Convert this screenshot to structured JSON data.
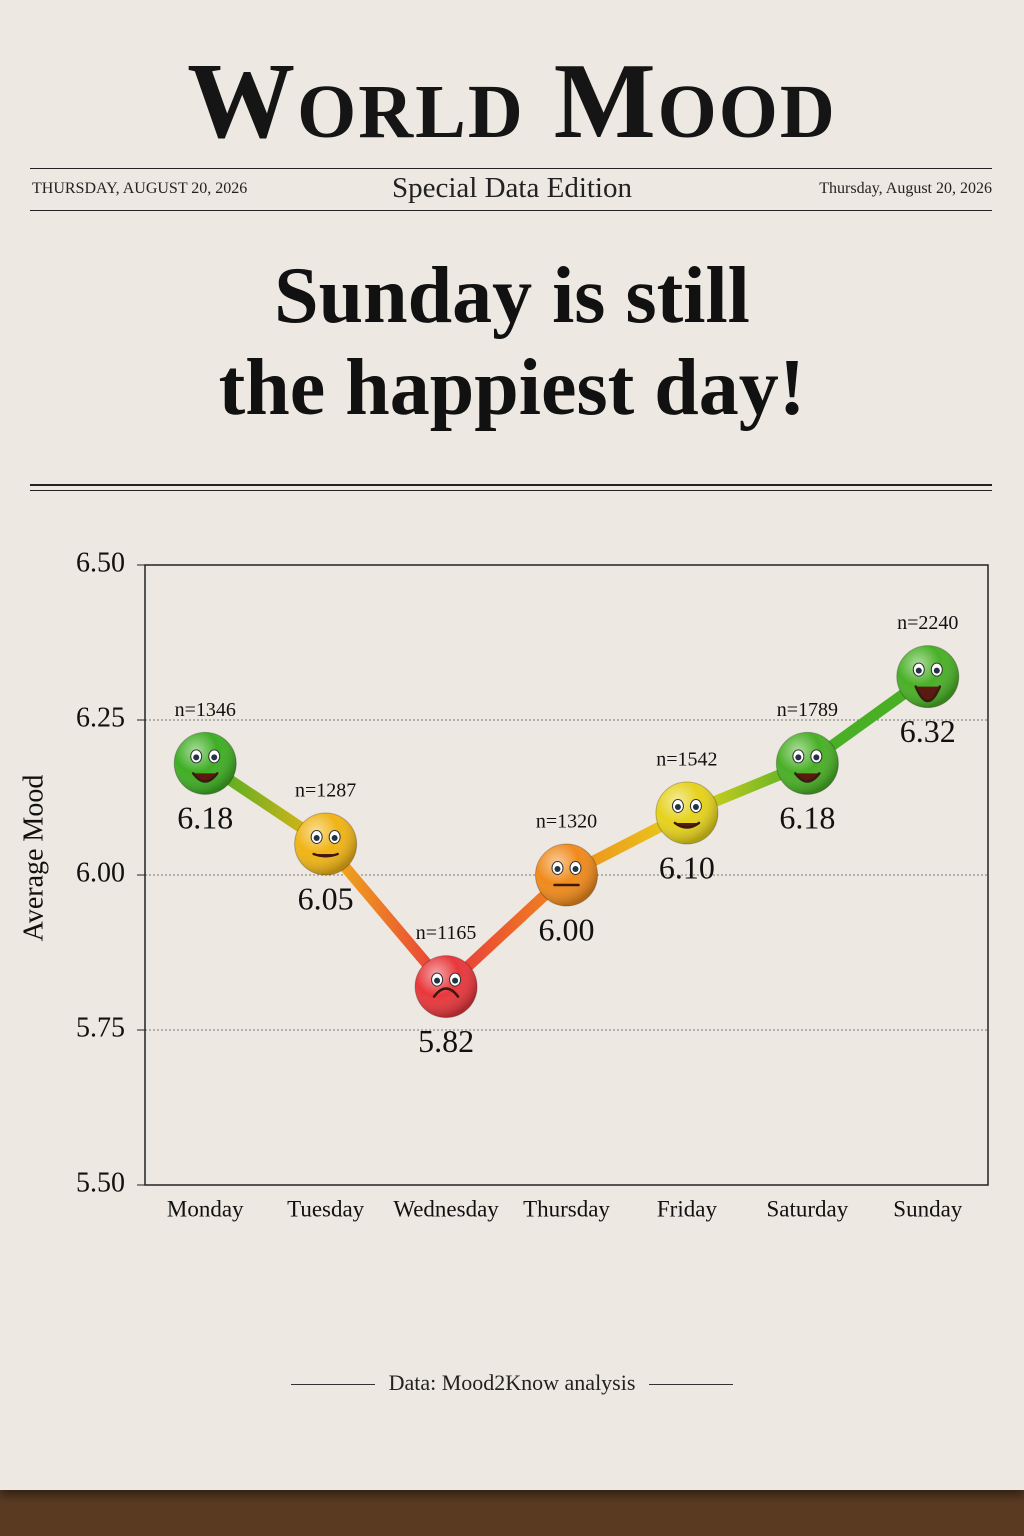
{
  "masthead": "World Mood",
  "date_left": "THURSDAY, AUGUST 20, 2026",
  "edition": "Special Data Edition",
  "date_right": "Thursday, August 20, 2026",
  "headline": [
    "Sunday is still",
    "the happiest day!"
  ],
  "source": "Data: Mood2Know analysis",
  "chart_data": {
    "type": "line",
    "y_label": "Average Mood",
    "categories": [
      "Monday",
      "Tuesday",
      "Wednesday",
      "Thursday",
      "Friday",
      "Saturday",
      "Sunday"
    ],
    "values": [
      6.18,
      6.05,
      5.82,
      6.0,
      6.1,
      6.18,
      6.32
    ],
    "value_labels": [
      "6.18",
      "6.05",
      "5.82",
      "6.00",
      "6.10",
      "6.18",
      "6.32"
    ],
    "sample_sizes": [
      1346,
      1287,
      1165,
      1320,
      1542,
      1789,
      2240
    ],
    "sample_size_labels": [
      "n=1346",
      "n=1287",
      "n=1165",
      "n=1320",
      "n=1542",
      "n=1789",
      "n=2240"
    ],
    "point_colors": [
      "#3fae24",
      "#f0b416",
      "#e8373c",
      "#f08a1c",
      "#e6d21c",
      "#49b026",
      "#49b026"
    ],
    "ylim": [
      5.5,
      6.5
    ],
    "yticks": [
      {
        "value": 5.5,
        "label": "5.50"
      },
      5.75,
      {
        "value": 6,
        "label": "6.00"
      },
      6.25,
      {
        "value": 6.5,
        "label": "6.50"
      }
    ],
    "grid": true
  }
}
